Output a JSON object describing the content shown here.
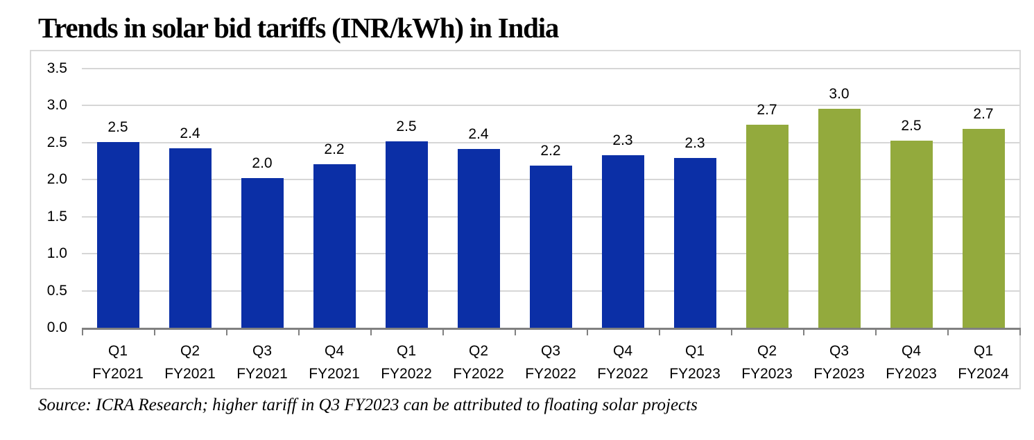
{
  "title": "Trends in solar bid tariffs (INR/kWh) in India",
  "source_note": "Source: ICRA Research; higher tariff in Q3 FY2023 can be attributed to floating solar projects",
  "colors": {
    "bar_blue": "#0B2FA6",
    "bar_green": "#93AA3D",
    "gridline": "#D6D6D6",
    "axis_line": "#808080",
    "frame_border": "#D9D9D9",
    "text": "#000000"
  },
  "chart_data": {
    "type": "bar",
    "title": "Trends in solar bid tariffs (INR/kWh) in India",
    "xlabel": "",
    "ylabel": "",
    "ylim": [
      0,
      3.5
    ],
    "ytick_labels": [
      "0.0",
      "0.5",
      "1.0",
      "1.5",
      "2.0",
      "2.5",
      "3.0",
      "3.5"
    ],
    "grid": "horizontal",
    "legend": "none",
    "categories": [
      {
        "quarter": "Q1",
        "fiscal_year": "FY2021"
      },
      {
        "quarter": "Q2",
        "fiscal_year": "FY2021"
      },
      {
        "quarter": "Q3",
        "fiscal_year": "FY2021"
      },
      {
        "quarter": "Q4",
        "fiscal_year": "FY2021"
      },
      {
        "quarter": "Q1",
        "fiscal_year": "FY2022"
      },
      {
        "quarter": "Q2",
        "fiscal_year": "FY2022"
      },
      {
        "quarter": "Q3",
        "fiscal_year": "FY2022"
      },
      {
        "quarter": "Q4",
        "fiscal_year": "FY2022"
      },
      {
        "quarter": "Q1",
        "fiscal_year": "FY2023"
      },
      {
        "quarter": "Q2",
        "fiscal_year": "FY2023"
      },
      {
        "quarter": "Q3",
        "fiscal_year": "FY2023"
      },
      {
        "quarter": "Q4",
        "fiscal_year": "FY2023"
      },
      {
        "quarter": "Q1",
        "fiscal_year": "FY2024"
      }
    ],
    "values": [
      2.5,
      2.4,
      2.0,
      2.2,
      2.5,
      2.4,
      2.2,
      2.3,
      2.3,
      2.7,
      3.0,
      2.5,
      2.7
    ],
    "data_labels": [
      "2.5",
      "2.4",
      "2.0",
      "2.2",
      "2.5",
      "2.4",
      "2.2",
      "2.3",
      "2.3",
      "2.7",
      "3.0",
      "2.5",
      "2.7"
    ],
    "bar_heights_est": [
      2.5,
      2.42,
      2.02,
      2.21,
      2.51,
      2.41,
      2.19,
      2.33,
      2.29,
      2.74,
      2.95,
      2.52,
      2.68
    ],
    "bar_colors": [
      "#0B2FA6",
      "#0B2FA6",
      "#0B2FA6",
      "#0B2FA6",
      "#0B2FA6",
      "#0B2FA6",
      "#0B2FA6",
      "#0B2FA6",
      "#0B2FA6",
      "#93AA3D",
      "#93AA3D",
      "#93AA3D",
      "#93AA3D"
    ]
  }
}
